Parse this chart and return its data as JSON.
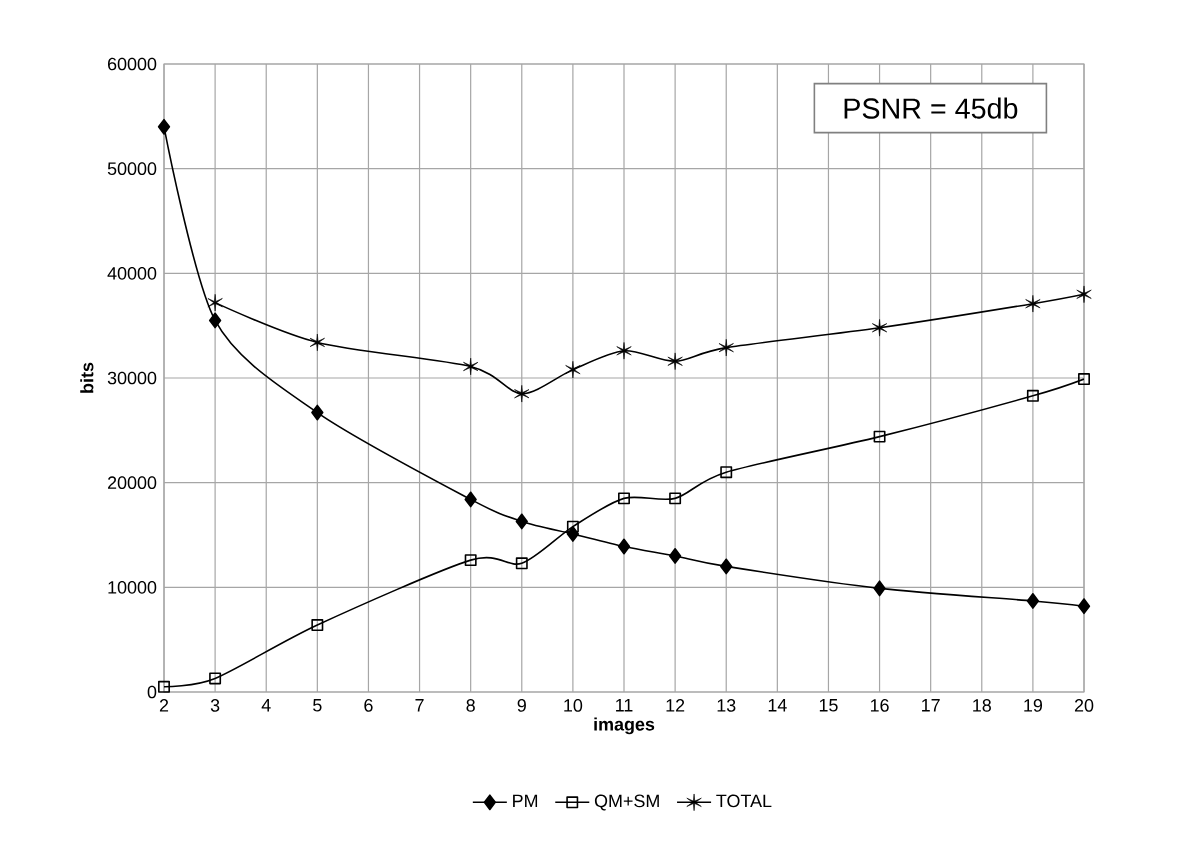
{
  "chart_data": {
    "type": "line",
    "xlabel": "images",
    "ylabel": "bits",
    "annotations": [
      "PSNR = 45db"
    ],
    "xlim": [
      2,
      20
    ],
    "xticks": [
      2,
      3,
      4,
      5,
      6,
      7,
      8,
      9,
      10,
      11,
      12,
      13,
      14,
      15,
      16,
      17,
      18,
      19,
      20
    ],
    "ylim": [
      0,
      60000
    ],
    "yticks": [
      0,
      10000,
      20000,
      30000,
      40000,
      50000,
      60000
    ],
    "grid": true,
    "legend": "bottom",
    "line_style": "solid",
    "series": [
      {
        "name": "PM",
        "color": "#000000",
        "marker": "diamond",
        "x": [
          2,
          3,
          5,
          8,
          9,
          10,
          11,
          12,
          13,
          16,
          19,
          20
        ],
        "values": [
          54000,
          35500,
          26700,
          18400,
          16300,
          15100,
          13900,
          13000,
          12000,
          9900,
          8700,
          8200
        ]
      },
      {
        "name": "QM+SM",
        "color": "#000000",
        "marker": "square",
        "x": [
          2,
          3,
          5,
          8,
          9,
          10,
          11,
          12,
          13,
          16,
          19,
          20
        ],
        "values": [
          500,
          1300,
          6400,
          12600,
          12300,
          15800,
          18500,
          18500,
          21000,
          24400,
          28300,
          29900
        ]
      },
      {
        "name": "TOTAL",
        "color": "#000000",
        "marker": "cross",
        "x": [
          3,
          5,
          8,
          9,
          10,
          11,
          12,
          13,
          16,
          19,
          20
        ],
        "values": [
          37200,
          33400,
          31100,
          28500,
          30800,
          32600,
          31600,
          32900,
          34800,
          37100,
          38000
        ]
      }
    ]
  }
}
